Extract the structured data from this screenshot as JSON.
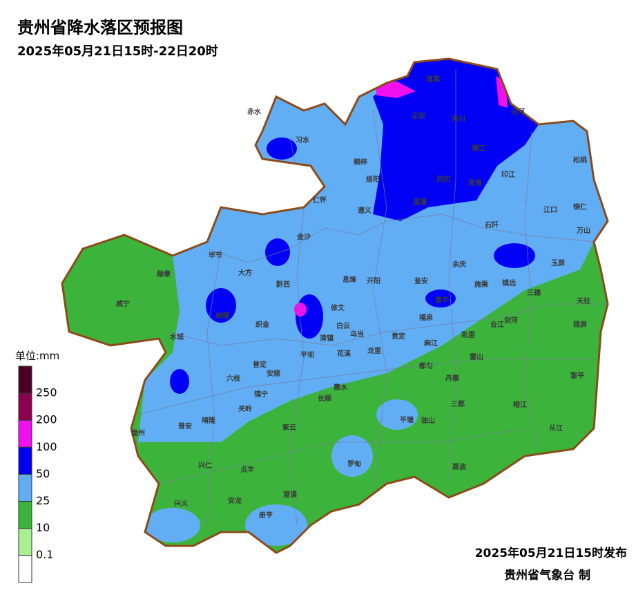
{
  "header": {
    "title": "贵州省降水落区预报图",
    "subtitle": "2025年05月21日15时-22日20时"
  },
  "legend": {
    "title": "单位:mm",
    "labels": [
      250,
      200,
      100,
      50,
      25,
      10,
      0.1
    ],
    "colors": [
      "#4a0024",
      "#8b0050",
      "#f010f0",
      "#0000f5",
      "#62aef5",
      "#3cb43c",
      "#a8f090",
      "#ffffff"
    ]
  },
  "footer": {
    "issued": "2025年05月21日15时发布",
    "agency": "贵州省气象台 制"
  },
  "counties": [
    "赤水",
    "习水",
    "桐梓",
    "道真",
    "正安",
    "务川",
    "沿河",
    "绥阳",
    "凤冈",
    "湄潭",
    "德江",
    "思南",
    "印江",
    "松桃",
    "仁怀",
    "遵义",
    "江口",
    "铜仁",
    "万山",
    "石阡",
    "金沙",
    "毕节",
    "大方",
    "余庆",
    "玉屏",
    "赫章",
    "黔西",
    "息烽",
    "开阳",
    "瓮安",
    "施秉",
    "镇远",
    "三穗",
    "天柱",
    "威宁",
    "纳雍",
    "织金",
    "修文",
    "黄平",
    "福泉",
    "台江",
    "剑河",
    "锦屏",
    "水城",
    "白云",
    "乌当",
    "清镇",
    "贵定",
    "麻江",
    "凯里",
    "平坝",
    "花溪",
    "龙里",
    "普定",
    "安顺",
    "都匀",
    "雷山",
    "六枝",
    "黎平",
    "丹寨",
    "惠水",
    "镇宁",
    "长顺",
    "关岭",
    "三都",
    "榕江",
    "盘州",
    "普安",
    "晴隆",
    "紫云",
    "平塘",
    "独山",
    "从江",
    "兴仁",
    "贞丰",
    "罗甸",
    "荔波",
    "望谟",
    "兴义",
    "安龙",
    "册亨"
  ]
}
